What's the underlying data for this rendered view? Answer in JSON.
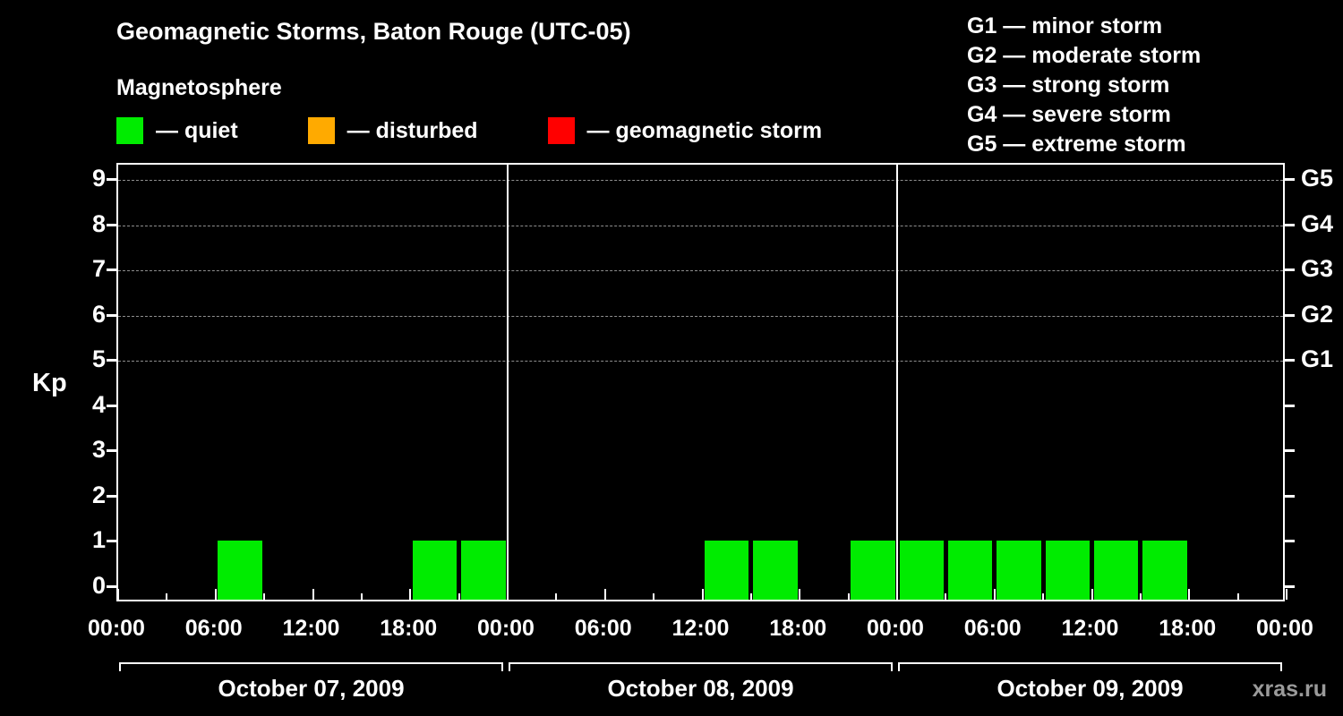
{
  "title": "Geomagnetic Storms, Baton Rouge (UTC-05)",
  "legend": {
    "heading": "Magnetosphere",
    "items": [
      {
        "label": "— quiet",
        "color": "#00ec00"
      },
      {
        "label": "— disturbed",
        "color": "#ffaa00"
      },
      {
        "label": "— geomagnetic storm",
        "color": "#ff0000"
      }
    ]
  },
  "g_legend": [
    "G1 — minor storm",
    "G2 — moderate storm",
    "G3 — strong storm",
    "G4 — severe storm",
    "G5 — extreme storm"
  ],
  "axis": {
    "kp_label": "Kp",
    "y_ticks": [
      0,
      1,
      2,
      3,
      4,
      5,
      6,
      7,
      8,
      9
    ],
    "right_labels": [
      "G1",
      "G2",
      "G3",
      "G4",
      "G5"
    ],
    "time_labels": [
      "00:00",
      "06:00",
      "12:00",
      "18:00"
    ]
  },
  "watermark": "xras.ru",
  "chart_data": {
    "type": "bar",
    "title": "Geomagnetic Storms, Baton Rouge (UTC-05)",
    "ylabel": "Kp",
    "ylim": [
      0,
      9
    ],
    "bin_hours": 3,
    "grid_dashed_at_kp": [
      5,
      6,
      7,
      8,
      9
    ],
    "g_levels": {
      "G1": 5,
      "G2": 6,
      "G3": 7,
      "G4": 8,
      "G5": 9
    },
    "colors": {
      "quiet": "#00ec00",
      "disturbed": "#ffaa00",
      "storm": "#ff0000"
    },
    "days": [
      {
        "date": "October 07, 2009",
        "values": [
          0,
          0,
          1,
          0,
          0,
          0,
          1,
          1
        ]
      },
      {
        "date": "October 08, 2009",
        "values": [
          0,
          0,
          0,
          0,
          1,
          1,
          0,
          1
        ]
      },
      {
        "date": "October 09, 2009",
        "values": [
          1,
          1,
          1,
          1,
          1,
          1,
          0,
          0
        ]
      }
    ]
  }
}
